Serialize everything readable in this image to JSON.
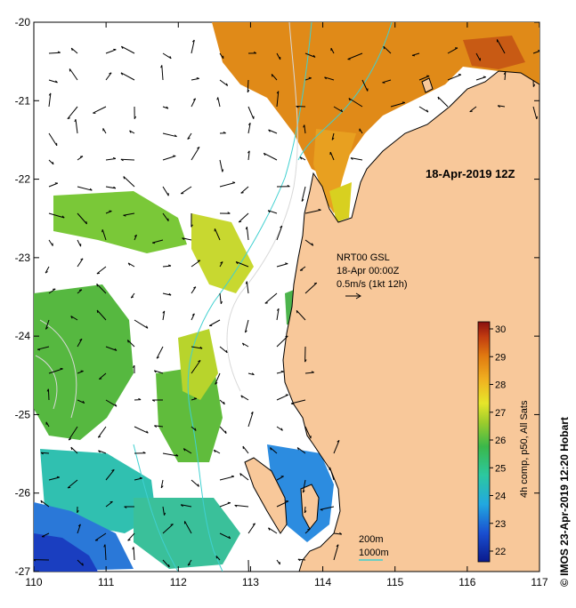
{
  "map": {
    "title": "18-Apr-2019 12Z",
    "lon_ticks": [
      "110",
      "111",
      "112",
      "113",
      "114",
      "115",
      "116",
      "117"
    ],
    "lat_ticks": [
      "-20",
      "-21",
      "-22",
      "-23",
      "-24",
      "-25",
      "-26",
      "-27"
    ],
    "current_legend": {
      "line1": "NRT00 GSL",
      "line2": "18-Apr 00:00Z",
      "line3": "0.5m/s (1kt 12h)"
    },
    "isobath_legend": {
      "shallow": "200m",
      "deep": "1000m",
      "deep_color": "#3fd0d0",
      "shallow_color": "#d0d0d0"
    },
    "land_color": "#f8c89a"
  },
  "colorbar": {
    "label": "4h comp, p50, All Sats",
    "ticks": [
      "22",
      "23",
      "24",
      "25",
      "26",
      "27",
      "28",
      "29",
      "30"
    ]
  },
  "credit": "© IMOS 23-Apr-2019 12:20 Hobart"
}
